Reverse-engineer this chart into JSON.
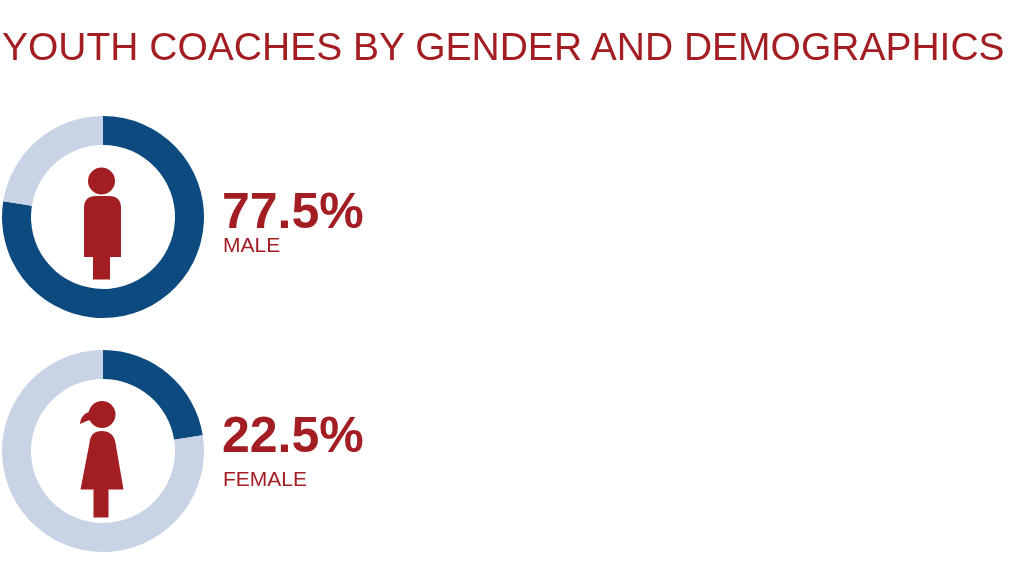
{
  "chart_data": [
    {
      "type": "donut",
      "title": "YOUTH COACHES BY GENDER AND DEMOGRAPHICS",
      "categories": [
        "MALE",
        null
      ],
      "values": [
        77.5,
        22.5
      ],
      "colors": [
        "#0d4a7f",
        "#c8d4e5"
      ],
      "value_labels": [
        "77.5%",
        null
      ]
    },
    {
      "type": "donut",
      "categories": [
        "FEMALE",
        null
      ],
      "values": [
        22.5,
        77.5
      ],
      "colors": [
        "#0d4a7f",
        "#c8d4e5"
      ],
      "value_labels": [
        "22.5%",
        null
      ]
    }
  ]
}
